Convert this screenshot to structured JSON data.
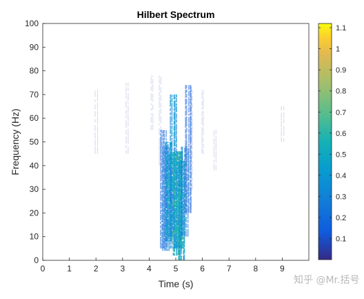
{
  "chart_data": {
    "type": "heatmap",
    "title": "Hilbert Spectrum",
    "xlabel": "Time (s)",
    "ylabel": "Frequency (Hz)",
    "xlim": [
      0,
      10
    ],
    "ylim": [
      0,
      100
    ],
    "x_ticks": [
      "0",
      "1",
      "2",
      "3",
      "4",
      "5",
      "6",
      "7",
      "8",
      "9"
    ],
    "x_tick_values": [
      0,
      1,
      2,
      3,
      4,
      5,
      6,
      7,
      8,
      9
    ],
    "y_ticks": [
      "0",
      "10",
      "20",
      "30",
      "40",
      "50",
      "60",
      "70",
      "80",
      "90",
      "100"
    ],
    "y_tick_values": [
      0,
      10,
      20,
      30,
      40,
      50,
      60,
      70,
      80,
      90,
      100
    ],
    "colorbar": {
      "colormap": "parula",
      "range": [
        0,
        1.12
      ],
      "ticks": [
        "0.1",
        "0.2",
        "0.3",
        "0.4",
        "0.5",
        "0.6",
        "0.7",
        "0.8",
        "0.9",
        "1",
        "1.1"
      ],
      "tick_values": [
        0.1,
        0.2,
        0.3,
        0.4,
        0.5,
        0.6,
        0.7,
        0.8,
        0.9,
        1.0,
        1.1
      ]
    },
    "grid": false,
    "regions": [
      {
        "t": 2.0,
        "f_lo": 45,
        "f_hi": 72,
        "amp": 0.05
      },
      {
        "t": 3.15,
        "f_lo": 45,
        "f_hi": 75,
        "amp": 0.05
      },
      {
        "t": 4.1,
        "f_lo": 55,
        "f_hi": 78,
        "amp": 0.06
      },
      {
        "t": 4.38,
        "f_lo": 40,
        "f_hi": 78,
        "amp": 0.07
      },
      {
        "t": 4.5,
        "f_lo": 5,
        "f_hi": 55,
        "amp": 0.18
      },
      {
        "t": 4.6,
        "f_lo": 4,
        "f_hi": 48,
        "amp": 0.25
      },
      {
        "t": 4.7,
        "f_lo": 8,
        "f_hi": 50,
        "amp": 0.38
      },
      {
        "t": 4.8,
        "f_lo": 10,
        "f_hi": 45,
        "amp": 0.42
      },
      {
        "t": 4.9,
        "f_lo": 5,
        "f_hi": 70,
        "amp": 0.35
      },
      {
        "t": 5.0,
        "f_lo": 2,
        "f_hi": 46,
        "amp": 0.55
      },
      {
        "t": 5.1,
        "f_lo": 5,
        "f_hi": 46,
        "amp": 0.5
      },
      {
        "t": 5.2,
        "f_lo": 0,
        "f_hi": 42,
        "amp": 0.45
      },
      {
        "t": 5.3,
        "f_lo": 10,
        "f_hi": 48,
        "amp": 0.3
      },
      {
        "t": 5.45,
        "f_lo": 20,
        "f_hi": 74,
        "amp": 0.15
      },
      {
        "t": 5.6,
        "f_lo": 30,
        "f_hi": 72,
        "amp": 0.1
      },
      {
        "t": 6.0,
        "f_lo": 45,
        "f_hi": 72,
        "amp": 0.06
      },
      {
        "t": 6.45,
        "f_lo": 38,
        "f_hi": 55,
        "amp": 0.06
      },
      {
        "t": 9.0,
        "f_lo": 50,
        "f_hi": 65,
        "amp": 0.05
      }
    ]
  },
  "watermark": "知乎 @Mr.括号"
}
